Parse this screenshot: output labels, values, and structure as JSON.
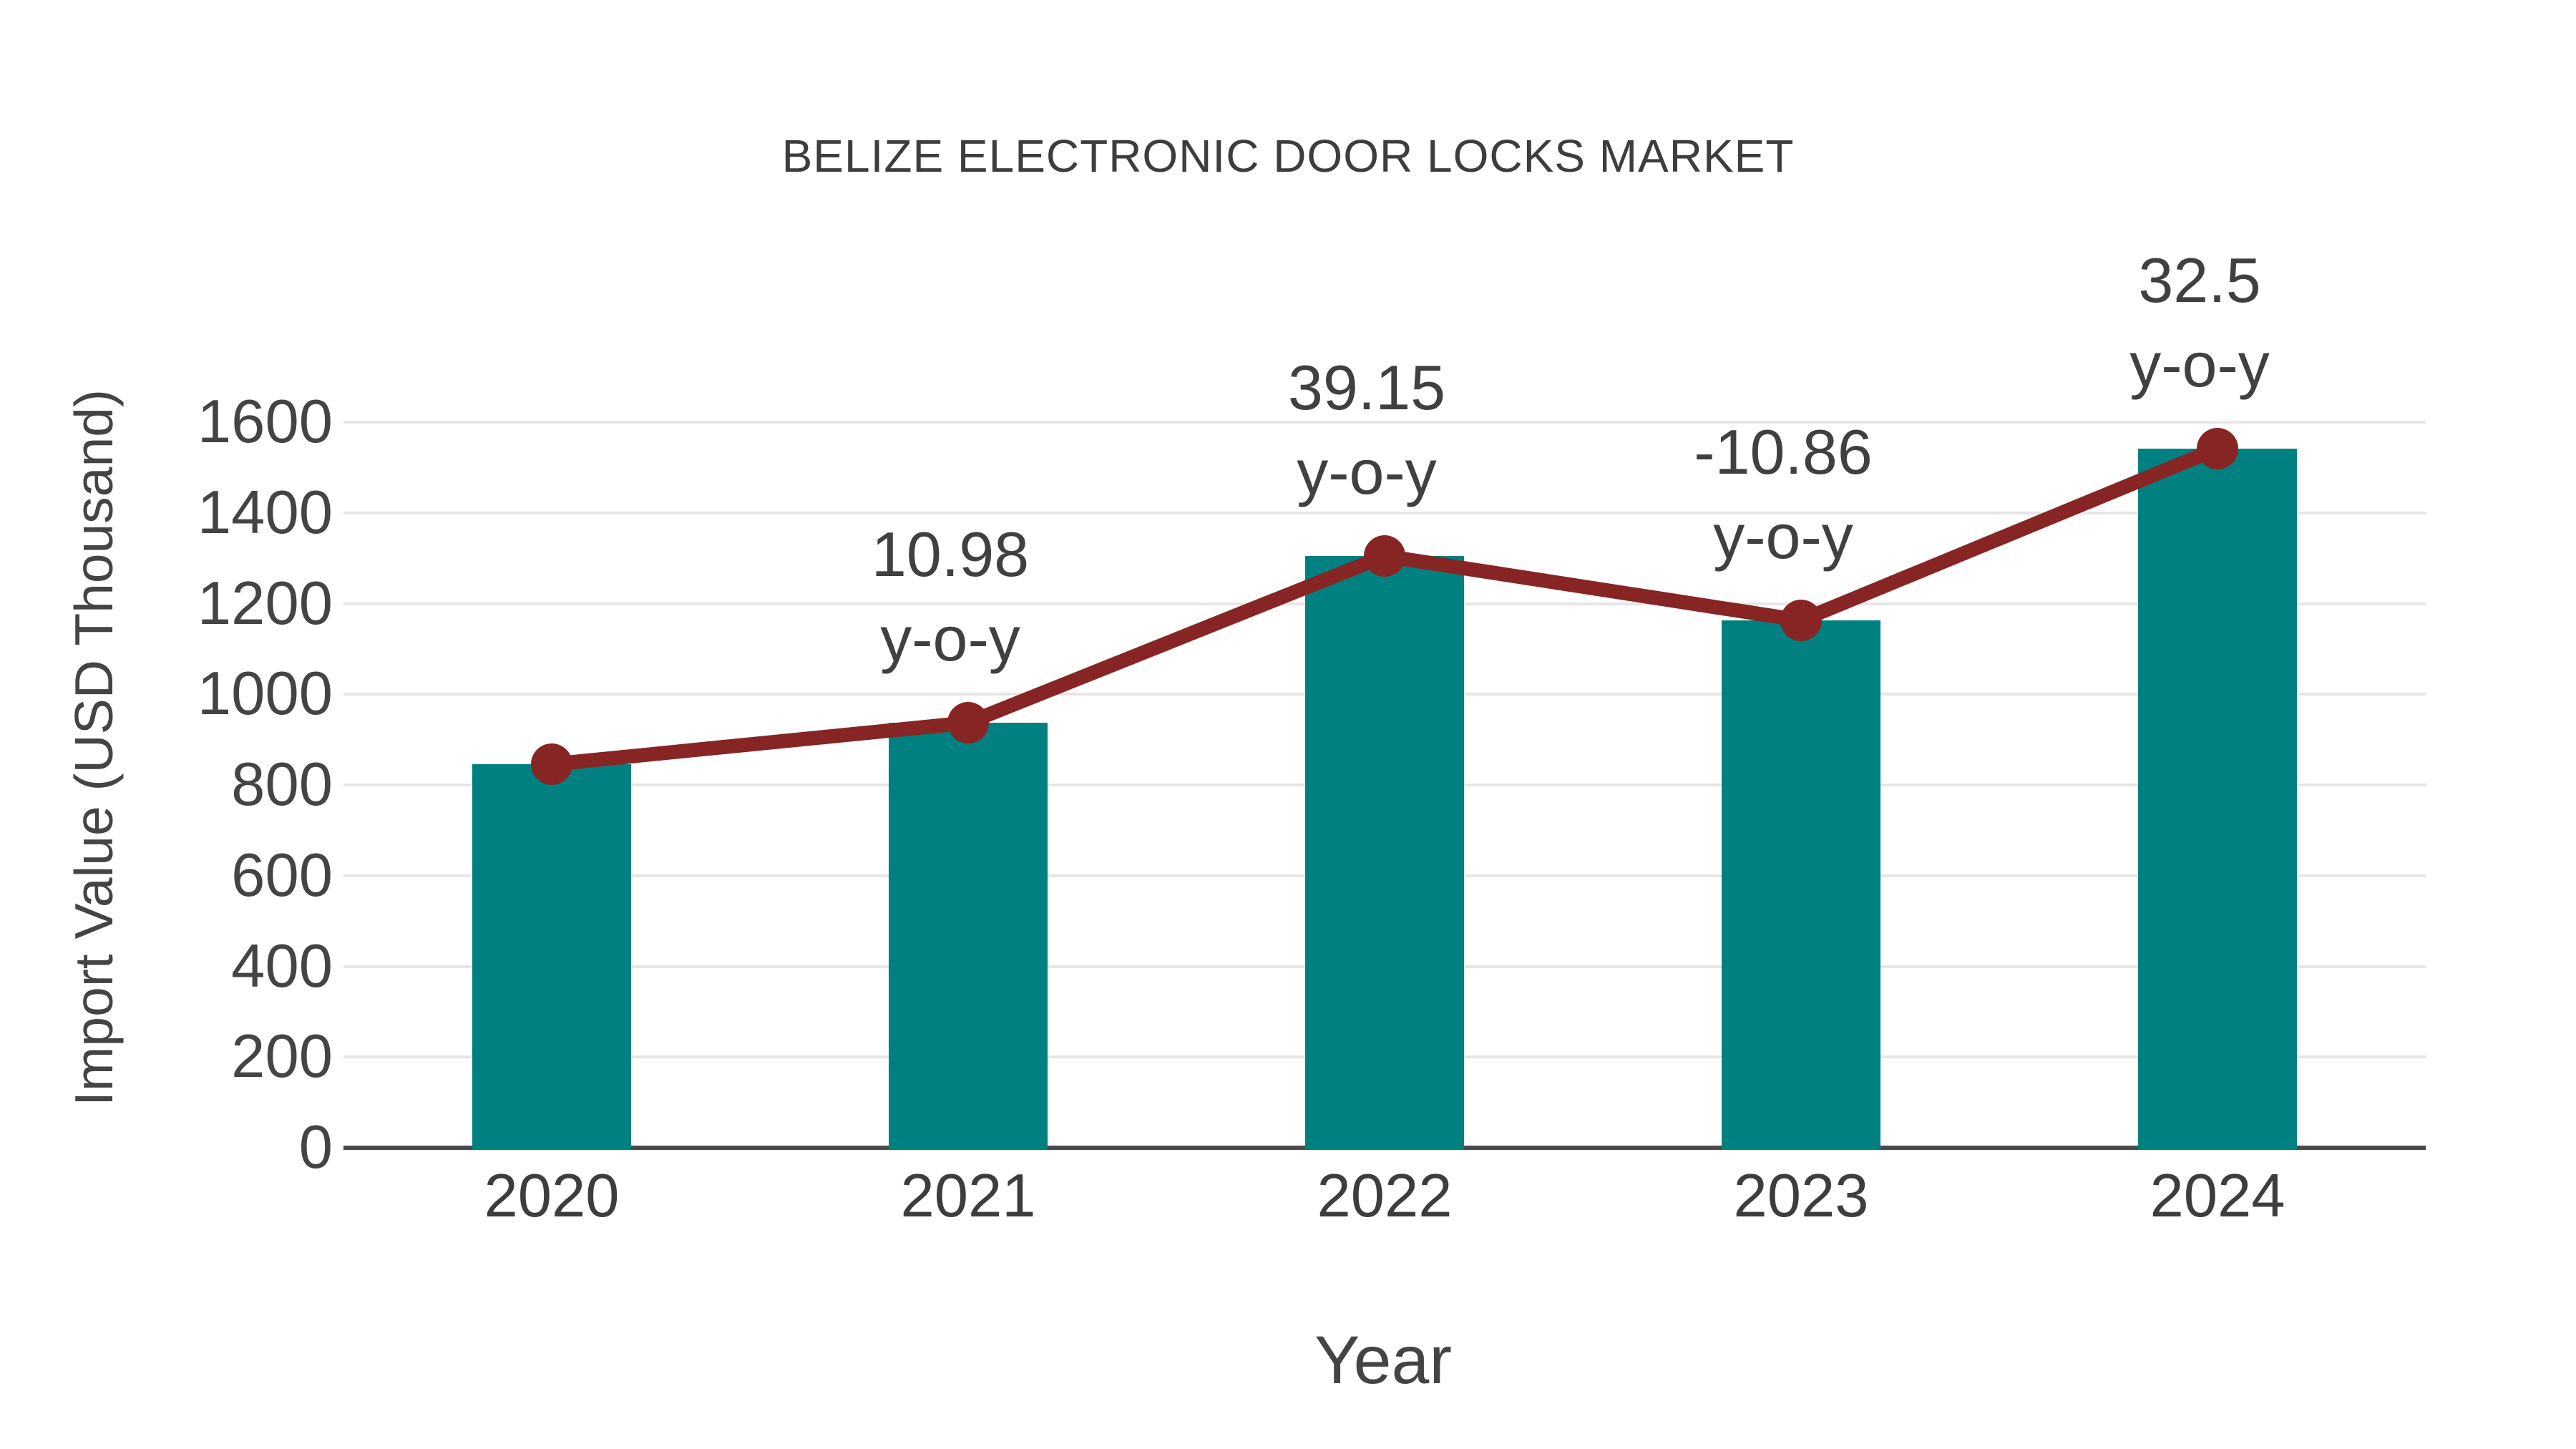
{
  "chart_data": {
    "type": "bar",
    "title": "BELIZE ELECTRONIC DOOR LOCKS MARKET",
    "xlabel": "Year",
    "ylabel": "Import Value (USD Thousand)",
    "categories": [
      "2020",
      "2021",
      "2022",
      "2023",
      "2024"
    ],
    "series": [
      {
        "name": "Import Value bars",
        "type": "bar",
        "color": "#008080",
        "values": [
          845,
          938,
          1305,
          1163,
          1542
        ]
      },
      {
        "name": "Import Value trend line with y-o-y annotations",
        "type": "line",
        "color": "#872424",
        "values": [
          845,
          938,
          1305,
          1163,
          1542
        ],
        "annotations": [
          null,
          {
            "value": "10.98",
            "label": "y-o-y"
          },
          {
            "value": "39.15",
            "label": "y-o-y"
          },
          {
            "value": "-10.86",
            "label": "y-o-y"
          },
          {
            "value": "32.5",
            "label": "y-o-y"
          }
        ]
      }
    ],
    "ylim": [
      0,
      1600
    ],
    "yticks": [
      0,
      200,
      400,
      600,
      800,
      1000,
      1200,
      1400,
      1600
    ],
    "grid": true,
    "legend": false,
    "colors": {
      "bar": "#008080",
      "line": "#872424",
      "grid": "#e6e6e6",
      "axis": "#4a4a4a",
      "text": "#444444",
      "title": "#3d3d3d"
    }
  }
}
